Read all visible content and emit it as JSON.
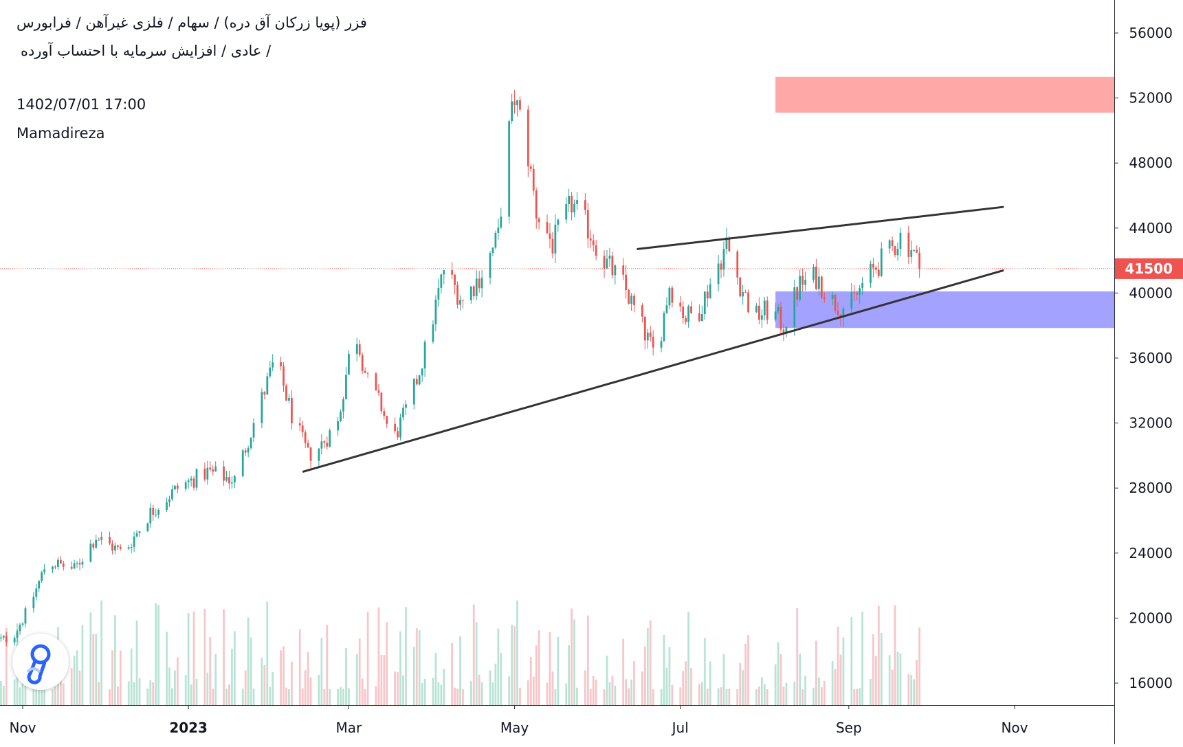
{
  "header": {
    "title": "فزر (پویا زرکان آق دره) / سهام / فلزی غیرآهن / فرابورس",
    "subtitle": "/ عادی / افزایش سرمایه با احتساب آورده",
    "date": "1402/07/01 17:00",
    "author": "Mamadireza"
  },
  "colors": {
    "up": "#26a69a",
    "down": "#ef5350",
    "up_volume": "#b9e3d4",
    "down_volume": "#f8c5c8",
    "resistance_zone": "#ff9e9e",
    "support_zone": "#9999ff",
    "trendline": "#333333",
    "price_badge": "#ef5350"
  },
  "logo": {
    "icon": "tradingview-logo-icon"
  },
  "chart_data": {
    "type": "candlestick",
    "x_axis": {
      "start": "2022-10-20",
      "end": "2023-12-31",
      "ticks": [
        {
          "date": "2022-11-01",
          "label": "Nov",
          "bold": false
        },
        {
          "date": "2023-01-01",
          "label": "2023",
          "bold": true
        },
        {
          "date": "2023-03-01",
          "label": "Mar",
          "bold": false
        },
        {
          "date": "2023-05-01",
          "label": "May",
          "bold": false
        },
        {
          "date": "2023-07-01",
          "label": "Jul",
          "bold": false
        },
        {
          "date": "2023-09-01",
          "label": "Sep",
          "bold": false
        },
        {
          "date": "2023-11-01",
          "label": "Nov",
          "bold": false
        }
      ]
    },
    "y_axis": {
      "ylim": [
        14750,
        57000
      ],
      "ticks": [
        16000,
        20000,
        24000,
        28000,
        32000,
        36000,
        40000,
        44000,
        48000,
        52000,
        56000
      ],
      "tick_labels": [
        "16000",
        "20000",
        "24000",
        "28000",
        "32000",
        "36000",
        "40000",
        "44000",
        "48000",
        "52000",
        "56000"
      ]
    },
    "last_price": 41500,
    "last_price_label": "41500",
    "price_path": [
      [
        "2022-10-20",
        18500
      ],
      [
        "2022-10-28",
        18800
      ],
      [
        "2022-11-03",
        20500
      ],
      [
        "2022-11-10",
        23500
      ],
      [
        "2022-11-20",
        23000
      ],
      [
        "2022-11-28",
        25000
      ],
      [
        "2022-12-08",
        24000
      ],
      [
        "2022-12-18",
        26500
      ],
      [
        "2022-12-28",
        28000
      ],
      [
        "2023-01-08",
        29000
      ],
      [
        "2023-01-18",
        28500
      ],
      [
        "2023-01-28",
        33500
      ],
      [
        "2023-02-02",
        36000
      ],
      [
        "2023-02-08",
        32500
      ],
      [
        "2023-02-14",
        30000
      ],
      [
        "2023-02-18",
        30500
      ],
      [
        "2023-02-25",
        32000
      ],
      [
        "2023-03-03",
        38000
      ],
      [
        "2023-03-08",
        34500
      ],
      [
        "2023-03-13",
        33000
      ],
      [
        "2023-03-17",
        30800
      ],
      [
        "2023-03-24",
        33500
      ],
      [
        "2023-03-30",
        37000
      ],
      [
        "2023-04-05",
        41500
      ],
      [
        "2023-04-12",
        39500
      ],
      [
        "2023-04-20",
        41500
      ],
      [
        "2023-04-25",
        43500
      ],
      [
        "2023-04-28",
        49000
      ],
      [
        "2023-05-01",
        52000
      ],
      [
        "2023-05-05",
        49500
      ],
      [
        "2023-05-09",
        45000
      ],
      [
        "2023-05-15",
        43000
      ],
      [
        "2023-05-22",
        45500
      ],
      [
        "2023-05-28",
        44000
      ],
      [
        "2023-06-03",
        42000
      ],
      [
        "2023-06-10",
        40500
      ],
      [
        "2023-06-18",
        37500
      ],
      [
        "2023-06-22",
        36000
      ],
      [
        "2023-06-27",
        40500
      ],
      [
        "2023-07-03",
        38500
      ],
      [
        "2023-07-08",
        39000
      ],
      [
        "2023-07-13",
        41000
      ],
      [
        "2023-07-18",
        43000
      ],
      [
        "2023-07-22",
        41000
      ],
      [
        "2023-07-28",
        38500
      ],
      [
        "2023-08-03",
        39000
      ],
      [
        "2023-08-08",
        38000
      ],
      [
        "2023-08-14",
        40500
      ],
      [
        "2023-08-20",
        41000
      ],
      [
        "2023-08-26",
        39500
      ],
      [
        "2023-09-01",
        39000
      ],
      [
        "2023-09-06",
        40500
      ],
      [
        "2023-09-12",
        41800
      ],
      [
        "2023-09-16",
        42500
      ],
      [
        "2023-09-20",
        43500
      ],
      [
        "2023-09-24",
        42800
      ],
      [
        "2023-09-27",
        41500
      ]
    ],
    "zones": [
      {
        "name": "resistance",
        "start": "2023-08-05",
        "end": "2023-12-31",
        "low": 51100,
        "high": 53300
      },
      {
        "name": "support",
        "start": "2023-08-05",
        "end": "2023-12-31",
        "low": 37850,
        "high": 40100
      }
    ],
    "trendlines": [
      {
        "name": "lower",
        "start": [
          "2023-02-12",
          29000
        ],
        "end": [
          "2023-10-28",
          41400
        ]
      },
      {
        "name": "upper",
        "start": [
          "2023-06-15",
          42700
        ],
        "end": [
          "2023-10-28",
          45300
        ]
      }
    ]
  }
}
